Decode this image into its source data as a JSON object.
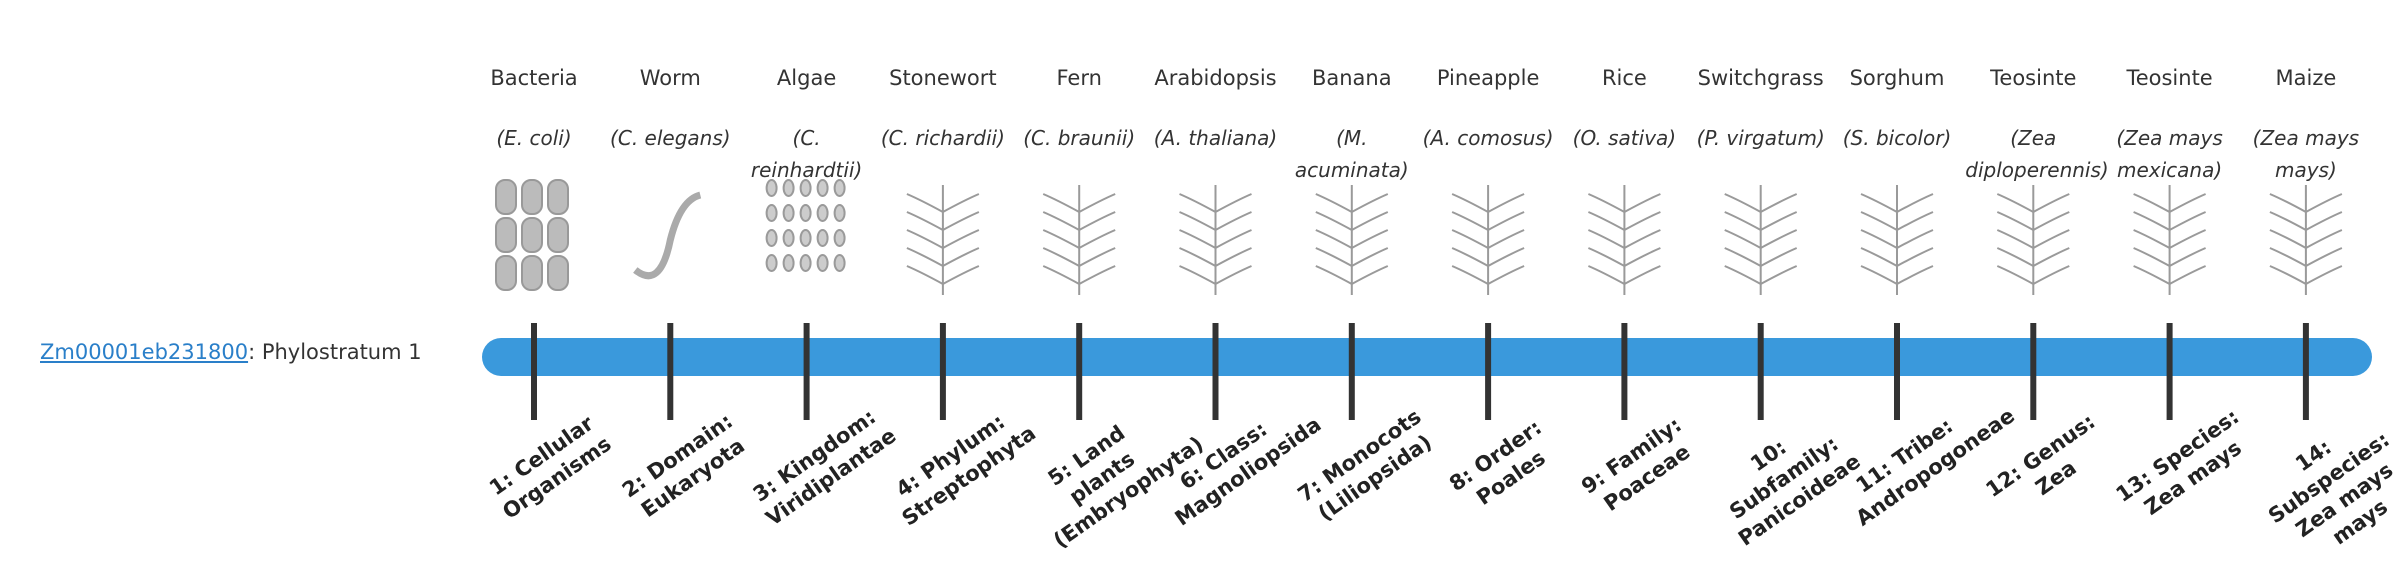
{
  "gene": {
    "id": "Zm00001eb231800",
    "suffix": ": Phylostratum 1"
  },
  "strata": [
    {
      "common": "Bacteria",
      "scientific": "(E. coli)",
      "rank": "1: Cellular Organisms"
    },
    {
      "common": "Worm",
      "scientific": "(C. elegans)",
      "rank": "2: Domain: Eukaryota"
    },
    {
      "common": "Algae",
      "scientific": "(C. reinhardtii)",
      "rank": "3: Kingdom: Viridiplantae"
    },
    {
      "common": "Stonewort",
      "scientific": "(C. richardii)",
      "rank": "4: Phylum: Streptophyta"
    },
    {
      "common": "Fern",
      "scientific": "(C. braunii)",
      "rank": "5: Land plants (Embryophyta)"
    },
    {
      "common": "Arabidopsis",
      "scientific": "(A. thaliana)",
      "rank": "6: Class: Magnoliopsida"
    },
    {
      "common": "Banana",
      "scientific": "(M. acuminata)",
      "rank": "7: Monocots (Liliopsida)"
    },
    {
      "common": "Pineapple",
      "scientific": "(A. comosus)",
      "rank": "8: Order: Poales"
    },
    {
      "common": "Rice",
      "scientific": "(O. sativa)",
      "rank": "9: Family: Poaceae"
    },
    {
      "common": "Switchgrass",
      "scientific": "(P. virgatum)",
      "rank": "10: Subfamily: Panicoideae"
    },
    {
      "common": "Sorghum",
      "scientific": "(S. bicolor)",
      "rank": "11: Tribe: Andropogoneae"
    },
    {
      "common": "Teosinte",
      "scientific": "(Zea diploperennis)",
      "rank": "12: Genus: Zea"
    },
    {
      "common": "Teosinte",
      "scientific": "(Zea mays mexicana)",
      "rank": "13: Species: Zea mays"
    },
    {
      "common": "Maize",
      "scientific": "(Zea mays mays)",
      "rank": "14: Subspecies: Zea mays mays"
    }
  ]
}
